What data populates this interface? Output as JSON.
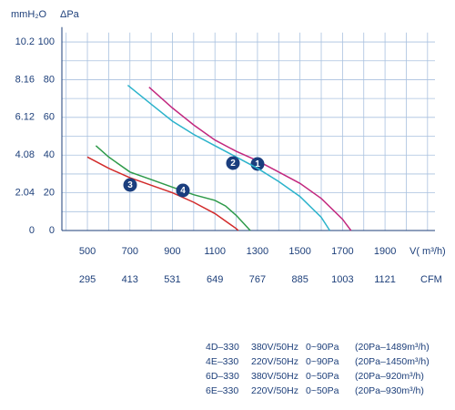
{
  "chart_data": {
    "type": "line",
    "y_label": "ΔPa",
    "y2_label": "mmH₂O",
    "x_label": "V( m³/h)",
    "x2_label": "CFM",
    "xlim": [
      380,
      2135
    ],
    "xticks": [
      500,
      700,
      900,
      1100,
      1300,
      1500,
      1700,
      1900
    ],
    "xgrid": [
      400,
      500,
      600,
      700,
      800,
      900,
      1000,
      1100,
      1200,
      1300,
      1400,
      1500,
      1600,
      1700,
      1800,
      1900,
      2000,
      2100
    ],
    "x2lim": [
      224.2,
      1259.7
    ],
    "x2ticks": [
      295,
      413,
      531,
      649,
      767,
      885,
      1003,
      1121
    ],
    "ylim": [
      0,
      105
    ],
    "yticks": [
      0,
      20,
      40,
      60,
      80,
      100
    ],
    "ygrid": [
      0,
      10,
      20,
      30,
      40,
      50,
      60,
      70,
      80,
      90,
      100
    ],
    "y2lim": [
      0,
      10.71
    ],
    "y2ticks": [
      0,
      2.04,
      4.08,
      6.12,
      8.16,
      10.2
    ],
    "grid": true,
    "series": [
      {
        "name": "4D-330",
        "marker_label": "1",
        "color": "#c2287e",
        "x": [
          790,
          900,
          1000,
          1100,
          1200,
          1300,
          1400,
          1500,
          1600,
          1700,
          1740
        ],
        "values": [
          76,
          65,
          56,
          48,
          42,
          37,
          31,
          25,
          17,
          6,
          0
        ]
      },
      {
        "name": "4E-330",
        "marker_label": "2",
        "color": "#2bb3cb",
        "x": [
          690,
          800,
          900,
          1000,
          1100,
          1200,
          1300,
          1400,
          1500,
          1600,
          1640
        ],
        "values": [
          77,
          67,
          58,
          51,
          45,
          39,
          33,
          26,
          18,
          7,
          0
        ]
      },
      {
        "name": "6D-330",
        "marker_label": "3",
        "color": "#d22b2b",
        "x": [
          500,
          600,
          700,
          800,
          900,
          1000,
          1100,
          1200,
          1210
        ],
        "values": [
          39,
          33,
          28,
          24,
          20,
          15,
          9,
          1,
          0
        ]
      },
      {
        "name": "6E-330",
        "marker_label": "4",
        "color": "#2e9a4a",
        "x": [
          540,
          600,
          700,
          800,
          900,
          1000,
          1100,
          1150,
          1200,
          1250,
          1266
        ],
        "values": [
          45,
          39,
          31,
          27,
          23,
          19,
          16,
          13,
          8,
          2,
          0
        ]
      }
    ],
    "legend_rows": [
      [
        "4D–330",
        "380V/50Hz",
        "0~90Pa",
        "(20Pa–1489m³/h)"
      ],
      [
        "4E–330",
        "220V/50Hz",
        "0~90Pa",
        "(20Pa–1450m³/h)"
      ],
      [
        "6D–330",
        "380V/50Hz",
        "0~50Pa",
        "(20Pa–920m³/h)"
      ],
      [
        "6E–330",
        "220V/50Hz",
        "0~50Pa",
        "(20Pa–930m³/h)"
      ]
    ]
  }
}
